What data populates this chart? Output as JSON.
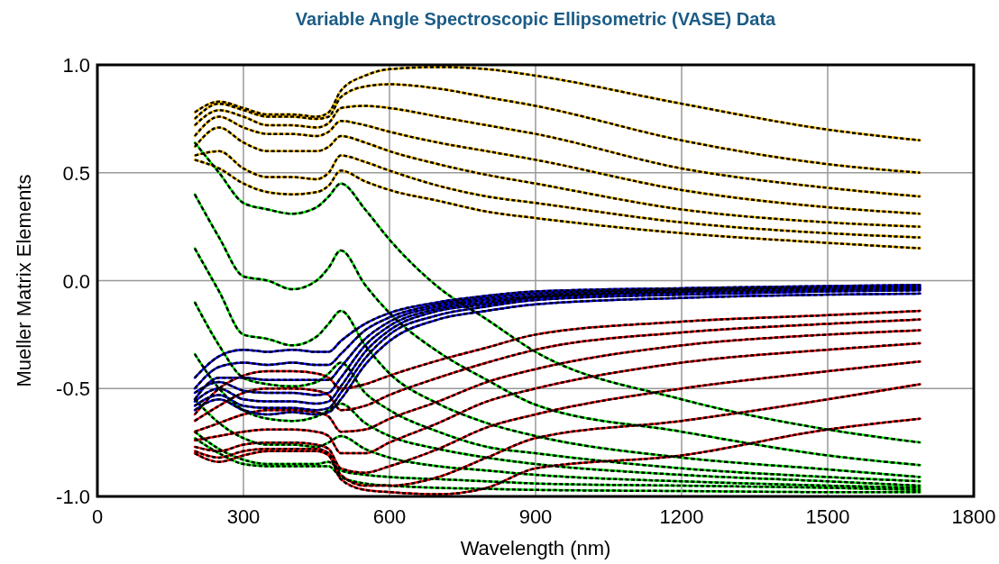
{
  "chart_data": {
    "type": "line",
    "title": "Variable Angle Spectroscopic Ellipsometric (VASE) Data",
    "xlabel": "Wavelength (nm)",
    "ylabel": "Mueller Matrix Elements",
    "x": [
      200,
      250,
      300,
      350,
      400,
      450,
      475,
      500,
      550,
      600,
      700,
      800,
      900,
      1200,
      1500,
      1690
    ],
    "xlim": [
      0,
      1800
    ],
    "xticks": [
      0,
      300,
      600,
      900,
      1200,
      1500,
      1800
    ],
    "ylim": [
      -1,
      1
    ],
    "yticks": [
      {
        "value": -1,
        "label": "-1.0"
      },
      {
        "value": -0.5,
        "label": "-0.5"
      },
      {
        "value": 0,
        "label": "0.0"
      },
      {
        "value": 0.5,
        "label": "0.5"
      },
      {
        "value": 1,
        "label": "1.0"
      }
    ],
    "grid": true,
    "series": [
      {
        "color": "#ffc000",
        "values": [
          0.78,
          0.83,
          0.8,
          0.77,
          0.77,
          0.76,
          0.78,
          0.88,
          0.95,
          0.98,
          0.99,
          0.98,
          0.95,
          0.82,
          0.7,
          0.65
        ]
      },
      {
        "color": "#ffc000",
        "values": [
          0.75,
          0.82,
          0.79,
          0.76,
          0.76,
          0.75,
          0.76,
          0.85,
          0.9,
          0.91,
          0.89,
          0.85,
          0.81,
          0.65,
          0.54,
          0.5
        ]
      },
      {
        "color": "#ffc000",
        "values": [
          0.72,
          0.79,
          0.76,
          0.72,
          0.72,
          0.71,
          0.73,
          0.8,
          0.81,
          0.8,
          0.76,
          0.72,
          0.68,
          0.52,
          0.43,
          0.39
        ]
      },
      {
        "color": "#ffc000",
        "values": [
          0.67,
          0.76,
          0.71,
          0.68,
          0.68,
          0.67,
          0.69,
          0.74,
          0.72,
          0.69,
          0.64,
          0.6,
          0.56,
          0.42,
          0.34,
          0.31
        ]
      },
      {
        "color": "#ffc000",
        "values": [
          0.62,
          0.71,
          0.64,
          0.6,
          0.6,
          0.6,
          0.62,
          0.67,
          0.64,
          0.6,
          0.54,
          0.49,
          0.45,
          0.33,
          0.27,
          0.25
        ]
      },
      {
        "color": "#ffc000",
        "values": [
          0.58,
          0.6,
          0.52,
          0.48,
          0.48,
          0.47,
          0.5,
          0.58,
          0.55,
          0.51,
          0.44,
          0.39,
          0.36,
          0.27,
          0.22,
          0.2
        ]
      },
      {
        "color": "#ffc000",
        "values": [
          0.56,
          0.52,
          0.45,
          0.41,
          0.4,
          0.41,
          0.44,
          0.51,
          0.46,
          0.42,
          0.37,
          0.32,
          0.29,
          0.22,
          0.175,
          0.15
        ]
      },
      {
        "color": "#00ee00",
        "values": [
          0.64,
          0.5,
          0.36,
          0.33,
          0.31,
          0.34,
          0.39,
          0.45,
          0.33,
          0.19,
          -0.03,
          -0.18,
          -0.33,
          -0.55,
          -0.69,
          -0.75
        ]
      },
      {
        "color": "#00ee00",
        "values": [
          0.4,
          0.2,
          0.02,
          0.0,
          -0.04,
          0.0,
          0.06,
          0.14,
          -0.02,
          -0.15,
          -0.33,
          -0.46,
          -0.575,
          -0.7,
          -0.81,
          -0.855
        ]
      },
      {
        "color": "#00ee00",
        "values": [
          0.15,
          -0.05,
          -0.25,
          -0.27,
          -0.3,
          -0.26,
          -0.2,
          -0.14,
          -0.3,
          -0.43,
          -0.57,
          -0.66,
          -0.72,
          -0.82,
          -0.875,
          -0.91
        ]
      },
      {
        "color": "#00ee00",
        "values": [
          -0.1,
          -0.3,
          -0.45,
          -0.48,
          -0.49,
          -0.47,
          -0.43,
          -0.38,
          -0.52,
          -0.6,
          -0.7,
          -0.77,
          -0.8,
          -0.87,
          -0.91,
          -0.93
        ]
      },
      {
        "color": "#00ee00",
        "values": [
          -0.34,
          -0.5,
          -0.6,
          -0.64,
          -0.65,
          -0.63,
          -0.6,
          -0.57,
          -0.66,
          -0.72,
          -0.78,
          -0.82,
          -0.85,
          -0.9,
          -0.93,
          -0.95
        ]
      },
      {
        "color": "#00ee00",
        "values": [
          -0.55,
          -0.66,
          -0.73,
          -0.76,
          -0.76,
          -0.77,
          -0.75,
          -0.72,
          -0.78,
          -0.82,
          -0.86,
          -0.88,
          -0.9,
          -0.93,
          -0.95,
          -0.96
        ]
      },
      {
        "color": "#00ee00",
        "values": [
          -0.7,
          -0.78,
          -0.83,
          -0.85,
          -0.85,
          -0.85,
          -0.84,
          -0.88,
          -0.9,
          -0.91,
          -0.92,
          -0.93,
          -0.94,
          -0.95,
          -0.96,
          -0.97
        ]
      },
      {
        "color": "#00ee00",
        "values": [
          -0.73,
          -0.8,
          -0.85,
          -0.86,
          -0.86,
          -0.86,
          -0.86,
          -0.91,
          -0.94,
          -0.95,
          -0.96,
          -0.965,
          -0.97,
          -0.975,
          -0.98,
          -0.98
        ]
      },
      {
        "color": "#ff0000",
        "values": [
          -0.62,
          -0.5,
          -0.44,
          -0.42,
          -0.42,
          -0.43,
          -0.45,
          -0.5,
          -0.48,
          -0.44,
          -0.37,
          -0.31,
          -0.25,
          -0.19,
          -0.16,
          -0.14
        ]
      },
      {
        "color": "#ff0000",
        "values": [
          -0.65,
          -0.58,
          -0.52,
          -0.5,
          -0.5,
          -0.51,
          -0.53,
          -0.6,
          -0.58,
          -0.53,
          -0.45,
          -0.38,
          -0.32,
          -0.24,
          -0.2,
          -0.18
        ]
      },
      {
        "color": "#ff0000",
        "values": [
          -0.7,
          -0.66,
          -0.62,
          -0.6,
          -0.6,
          -0.61,
          -0.63,
          -0.7,
          -0.69,
          -0.64,
          -0.56,
          -0.47,
          -0.41,
          -0.3,
          -0.25,
          -0.23
        ]
      },
      {
        "color": "#ff0000",
        "values": [
          -0.74,
          -0.72,
          -0.7,
          -0.69,
          -0.69,
          -0.7,
          -0.72,
          -0.8,
          -0.8,
          -0.75,
          -0.66,
          -0.56,
          -0.5,
          -0.38,
          -0.32,
          -0.29
        ]
      },
      {
        "color": "#ff0000",
        "values": [
          -0.77,
          -0.79,
          -0.76,
          -0.75,
          -0.75,
          -0.76,
          -0.78,
          -0.87,
          -0.89,
          -0.86,
          -0.78,
          -0.68,
          -0.62,
          -0.5,
          -0.42,
          -0.375
        ]
      },
      {
        "color": "#ff0000",
        "values": [
          -0.79,
          -0.82,
          -0.79,
          -0.78,
          -0.78,
          -0.78,
          -0.8,
          -0.9,
          -0.95,
          -0.95,
          -0.91,
          -0.82,
          -0.73,
          -0.65,
          -0.55,
          -0.48
        ]
      },
      {
        "color": "#ff0000",
        "values": [
          -0.8,
          -0.84,
          -0.81,
          -0.79,
          -0.79,
          -0.79,
          -0.81,
          -0.92,
          -0.97,
          -0.98,
          -0.99,
          -0.96,
          -0.87,
          -0.81,
          -0.69,
          -0.64
        ]
      },
      {
        "color": "#0000ff",
        "values": [
          -0.45,
          -0.35,
          -0.32,
          -0.33,
          -0.32,
          -0.33,
          -0.33,
          -0.28,
          -0.2,
          -0.15,
          -0.1,
          -0.07,
          -0.05,
          -0.035,
          -0.025,
          -0.02
        ]
      },
      {
        "color": "#0000ff",
        "values": [
          -0.5,
          -0.4,
          -0.38,
          -0.39,
          -0.38,
          -0.39,
          -0.39,
          -0.34,
          -0.23,
          -0.17,
          -0.11,
          -0.08,
          -0.06,
          -0.04,
          -0.03,
          -0.025
        ]
      },
      {
        "color": "#0000ff",
        "values": [
          -0.55,
          -0.45,
          -0.45,
          -0.46,
          -0.46,
          -0.46,
          -0.46,
          -0.4,
          -0.27,
          -0.19,
          -0.12,
          -0.09,
          -0.07,
          -0.045,
          -0.035,
          -0.03
        ]
      },
      {
        "color": "#0000ff",
        "values": [
          -0.52,
          -0.47,
          -0.51,
          -0.52,
          -0.52,
          -0.53,
          -0.52,
          -0.45,
          -0.3,
          -0.21,
          -0.13,
          -0.1,
          -0.075,
          -0.05,
          -0.04,
          -0.035
        ]
      },
      {
        "color": "#0000ff",
        "values": [
          -0.56,
          -0.5,
          -0.55,
          -0.56,
          -0.56,
          -0.57,
          -0.56,
          -0.49,
          -0.33,
          -0.23,
          -0.14,
          -0.11,
          -0.08,
          -0.055,
          -0.045,
          -0.04
        ]
      },
      {
        "color": "#0000ff",
        "values": [
          -0.58,
          -0.53,
          -0.58,
          -0.59,
          -0.59,
          -0.6,
          -0.59,
          -0.52,
          -0.36,
          -0.25,
          -0.16,
          -0.12,
          -0.09,
          -0.065,
          -0.05,
          -0.045
        ]
      },
      {
        "color": "#0000ff",
        "values": [
          -0.6,
          -0.55,
          -0.6,
          -0.62,
          -0.61,
          -0.62,
          -0.61,
          -0.55,
          -0.39,
          -0.28,
          -0.18,
          -0.14,
          -0.11,
          -0.08,
          -0.065,
          -0.06
        ]
      },
      {
        "color": "#000000",
        "line_style": "dotted",
        "values": [
          0.78,
          0.83,
          0.8,
          0.77,
          0.77,
          0.76,
          0.78,
          0.88,
          0.95,
          0.98,
          0.99,
          0.98,
          0.95,
          0.82,
          0.7,
          0.65
        ]
      },
      {
        "color": "#000000",
        "line_style": "dotted",
        "values": [
          0.75,
          0.82,
          0.79,
          0.76,
          0.76,
          0.75,
          0.76,
          0.85,
          0.9,
          0.91,
          0.89,
          0.85,
          0.81,
          0.65,
          0.54,
          0.5
        ]
      },
      {
        "color": "#000000",
        "line_style": "dotted",
        "values": [
          0.72,
          0.79,
          0.76,
          0.72,
          0.72,
          0.71,
          0.73,
          0.8,
          0.81,
          0.8,
          0.76,
          0.72,
          0.68,
          0.52,
          0.43,
          0.39
        ]
      },
      {
        "color": "#000000",
        "line_style": "dotted",
        "values": [
          0.67,
          0.76,
          0.71,
          0.68,
          0.68,
          0.67,
          0.69,
          0.74,
          0.72,
          0.69,
          0.64,
          0.6,
          0.56,
          0.42,
          0.34,
          0.31
        ]
      },
      {
        "color": "#000000",
        "line_style": "dotted",
        "values": [
          0.62,
          0.71,
          0.64,
          0.6,
          0.6,
          0.6,
          0.62,
          0.67,
          0.64,
          0.6,
          0.54,
          0.49,
          0.45,
          0.33,
          0.27,
          0.25
        ]
      },
      {
        "color": "#000000",
        "line_style": "dotted",
        "values": [
          0.58,
          0.6,
          0.52,
          0.48,
          0.48,
          0.47,
          0.5,
          0.58,
          0.55,
          0.51,
          0.44,
          0.39,
          0.36,
          0.27,
          0.22,
          0.2
        ]
      },
      {
        "color": "#000000",
        "line_style": "dotted",
        "values": [
          0.56,
          0.52,
          0.45,
          0.41,
          0.4,
          0.41,
          0.44,
          0.51,
          0.46,
          0.42,
          0.37,
          0.32,
          0.29,
          0.22,
          0.175,
          0.15
        ]
      },
      {
        "color": "#000000",
        "line_style": "dotted",
        "values": [
          0.64,
          0.5,
          0.36,
          0.33,
          0.31,
          0.34,
          0.39,
          0.45,
          0.33,
          0.19,
          -0.03,
          -0.18,
          -0.33,
          -0.55,
          -0.69,
          -0.75
        ]
      },
      {
        "color": "#000000",
        "line_style": "dotted",
        "values": [
          0.4,
          0.2,
          0.02,
          0.0,
          -0.04,
          0.0,
          0.06,
          0.14,
          -0.02,
          -0.15,
          -0.33,
          -0.46,
          -0.575,
          -0.7,
          -0.81,
          -0.855
        ]
      },
      {
        "color": "#000000",
        "line_style": "dotted",
        "values": [
          0.15,
          -0.05,
          -0.25,
          -0.27,
          -0.3,
          -0.26,
          -0.2,
          -0.14,
          -0.3,
          -0.43,
          -0.57,
          -0.66,
          -0.72,
          -0.82,
          -0.875,
          -0.91
        ]
      },
      {
        "color": "#000000",
        "line_style": "dotted",
        "values": [
          -0.1,
          -0.3,
          -0.45,
          -0.48,
          -0.49,
          -0.47,
          -0.43,
          -0.38,
          -0.52,
          -0.6,
          -0.7,
          -0.77,
          -0.8,
          -0.87,
          -0.91,
          -0.93
        ]
      },
      {
        "color": "#000000",
        "line_style": "dotted",
        "values": [
          -0.34,
          -0.5,
          -0.6,
          -0.64,
          -0.65,
          -0.63,
          -0.6,
          -0.57,
          -0.66,
          -0.72,
          -0.78,
          -0.82,
          -0.85,
          -0.9,
          -0.93,
          -0.95
        ]
      },
      {
        "color": "#000000",
        "line_style": "dotted",
        "values": [
          -0.55,
          -0.66,
          -0.73,
          -0.76,
          -0.76,
          -0.77,
          -0.75,
          -0.72,
          -0.78,
          -0.82,
          -0.86,
          -0.88,
          -0.9,
          -0.93,
          -0.95,
          -0.96
        ]
      },
      {
        "color": "#000000",
        "line_style": "dotted",
        "values": [
          -0.7,
          -0.78,
          -0.83,
          -0.85,
          -0.85,
          -0.85,
          -0.84,
          -0.88,
          -0.9,
          -0.91,
          -0.92,
          -0.93,
          -0.94,
          -0.95,
          -0.96,
          -0.97
        ]
      },
      {
        "color": "#000000",
        "line_style": "dotted",
        "values": [
          -0.73,
          -0.8,
          -0.85,
          -0.86,
          -0.86,
          -0.86,
          -0.86,
          -0.91,
          -0.94,
          -0.95,
          -0.96,
          -0.965,
          -0.97,
          -0.975,
          -0.98,
          -0.98
        ]
      },
      {
        "color": "#000000",
        "line_style": "dotted",
        "values": [
          -0.62,
          -0.5,
          -0.44,
          -0.42,
          -0.42,
          -0.43,
          -0.45,
          -0.5,
          -0.48,
          -0.44,
          -0.37,
          -0.31,
          -0.25,
          -0.19,
          -0.16,
          -0.14
        ]
      },
      {
        "color": "#000000",
        "line_style": "dotted",
        "values": [
          -0.65,
          -0.58,
          -0.52,
          -0.5,
          -0.5,
          -0.51,
          -0.53,
          -0.6,
          -0.58,
          -0.53,
          -0.45,
          -0.38,
          -0.32,
          -0.24,
          -0.2,
          -0.18
        ]
      },
      {
        "color": "#000000",
        "line_style": "dotted",
        "values": [
          -0.7,
          -0.66,
          -0.62,
          -0.6,
          -0.6,
          -0.61,
          -0.63,
          -0.7,
          -0.69,
          -0.64,
          -0.56,
          -0.47,
          -0.41,
          -0.3,
          -0.25,
          -0.23
        ]
      },
      {
        "color": "#000000",
        "line_style": "dotted",
        "values": [
          -0.74,
          -0.72,
          -0.7,
          -0.69,
          -0.69,
          -0.7,
          -0.72,
          -0.8,
          -0.8,
          -0.75,
          -0.66,
          -0.56,
          -0.5,
          -0.38,
          -0.32,
          -0.29
        ]
      },
      {
        "color": "#000000",
        "line_style": "dotted",
        "values": [
          -0.77,
          -0.79,
          -0.76,
          -0.75,
          -0.75,
          -0.76,
          -0.78,
          -0.87,
          -0.89,
          -0.86,
          -0.78,
          -0.68,
          -0.62,
          -0.5,
          -0.42,
          -0.375
        ]
      },
      {
        "color": "#000000",
        "line_style": "dotted",
        "values": [
          -0.79,
          -0.82,
          -0.79,
          -0.78,
          -0.78,
          -0.78,
          -0.8,
          -0.9,
          -0.95,
          -0.95,
          -0.91,
          -0.82,
          -0.73,
          -0.65,
          -0.55,
          -0.48
        ]
      },
      {
        "color": "#000000",
        "line_style": "dotted",
        "values": [
          -0.8,
          -0.84,
          -0.81,
          -0.79,
          -0.79,
          -0.79,
          -0.81,
          -0.92,
          -0.97,
          -0.98,
          -0.99,
          -0.96,
          -0.87,
          -0.81,
          -0.69,
          -0.64
        ]
      },
      {
        "color": "#000000",
        "line_style": "dotted",
        "values": [
          -0.45,
          -0.35,
          -0.32,
          -0.33,
          -0.32,
          -0.33,
          -0.33,
          -0.28,
          -0.2,
          -0.15,
          -0.1,
          -0.07,
          -0.05,
          -0.035,
          -0.025,
          -0.02
        ]
      },
      {
        "color": "#000000",
        "line_style": "dotted",
        "values": [
          -0.5,
          -0.4,
          -0.38,
          -0.39,
          -0.38,
          -0.39,
          -0.39,
          -0.34,
          -0.23,
          -0.17,
          -0.11,
          -0.08,
          -0.06,
          -0.04,
          -0.03,
          -0.025
        ]
      },
      {
        "color": "#000000",
        "line_style": "dotted",
        "values": [
          -0.55,
          -0.45,
          -0.45,
          -0.46,
          -0.46,
          -0.46,
          -0.46,
          -0.4,
          -0.27,
          -0.19,
          -0.12,
          -0.09,
          -0.07,
          -0.045,
          -0.035,
          -0.03
        ]
      },
      {
        "color": "#000000",
        "line_style": "dotted",
        "values": [
          -0.52,
          -0.47,
          -0.51,
          -0.52,
          -0.52,
          -0.53,
          -0.52,
          -0.45,
          -0.3,
          -0.21,
          -0.13,
          -0.1,
          -0.075,
          -0.05,
          -0.04,
          -0.035
        ]
      },
      {
        "color": "#000000",
        "line_style": "dotted",
        "values": [
          -0.56,
          -0.5,
          -0.55,
          -0.56,
          -0.56,
          -0.57,
          -0.56,
          -0.49,
          -0.33,
          -0.23,
          -0.14,
          -0.11,
          -0.08,
          -0.055,
          -0.045,
          -0.04
        ]
      },
      {
        "color": "#000000",
        "line_style": "dotted",
        "values": [
          -0.58,
          -0.53,
          -0.58,
          -0.59,
          -0.59,
          -0.6,
          -0.59,
          -0.52,
          -0.36,
          -0.25,
          -0.16,
          -0.12,
          -0.09,
          -0.065,
          -0.05,
          -0.045
        ]
      },
      {
        "color": "#000000",
        "line_style": "dotted",
        "values": [
          -0.6,
          -0.55,
          -0.6,
          -0.62,
          -0.61,
          -0.62,
          -0.61,
          -0.55,
          -0.39,
          -0.28,
          -0.18,
          -0.14,
          -0.11,
          -0.08,
          -0.065,
          -0.06
        ]
      }
    ]
  }
}
